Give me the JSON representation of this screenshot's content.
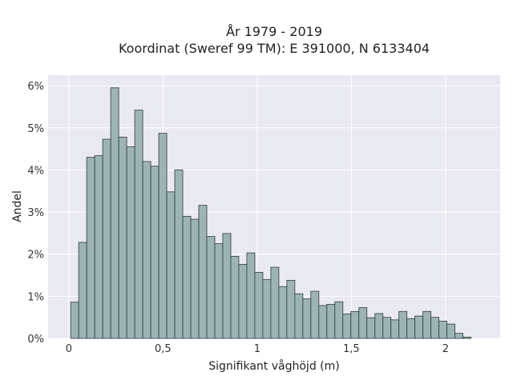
{
  "chart_data": {
    "type": "bar",
    "title": "År 1979 - 2019",
    "subtitle": "Koordinat (Sweref 99 TM): E 391000, N 6133404",
    "xlabel": "Signifikant våghöjd (m)",
    "ylabel": "Andel",
    "xlim": [
      -0.11,
      2.29
    ],
    "ylim": [
      0,
      6.25
    ],
    "xticks": [
      {
        "value": 0,
        "label": "0"
      },
      {
        "value": 0.5,
        "label": "0,5"
      },
      {
        "value": 1,
        "label": "1"
      },
      {
        "value": 1.5,
        "label": "1,5"
      },
      {
        "value": 2,
        "label": "2"
      }
    ],
    "yticks": [
      {
        "value": 0,
        "label": "0%"
      },
      {
        "value": 1,
        "label": "1%"
      },
      {
        "value": 2,
        "label": "2%"
      },
      {
        "value": 3,
        "label": "3%"
      },
      {
        "value": 4,
        "label": "4%"
      },
      {
        "value": 5,
        "label": "5%"
      },
      {
        "value": 6,
        "label": "6%"
      }
    ],
    "bin_start": 0.01,
    "bin_width": 0.0425,
    "values": [
      0.86,
      2.28,
      4.3,
      4.34,
      4.73,
      5.95,
      4.78,
      4.55,
      5.42,
      4.2,
      4.09,
      4.87,
      3.48,
      4.0,
      2.9,
      2.83,
      3.16,
      2.42,
      2.25,
      2.49,
      1.95,
      1.76,
      2.03,
      1.57,
      1.4,
      1.69,
      1.23,
      1.38,
      1.06,
      0.94,
      1.12,
      0.78,
      0.81,
      0.87,
      0.58,
      0.64,
      0.73,
      0.49,
      0.59,
      0.5,
      0.44,
      0.64,
      0.47,
      0.53,
      0.64,
      0.5,
      0.41,
      0.34,
      0.12,
      0.03
    ],
    "grid": true,
    "colors": {
      "bar_fill": "#9cb5b4",
      "bar_stroke": "#2f3b3a",
      "plot_bg": "#e9e9f1",
      "grid": "#ffffff"
    }
  }
}
